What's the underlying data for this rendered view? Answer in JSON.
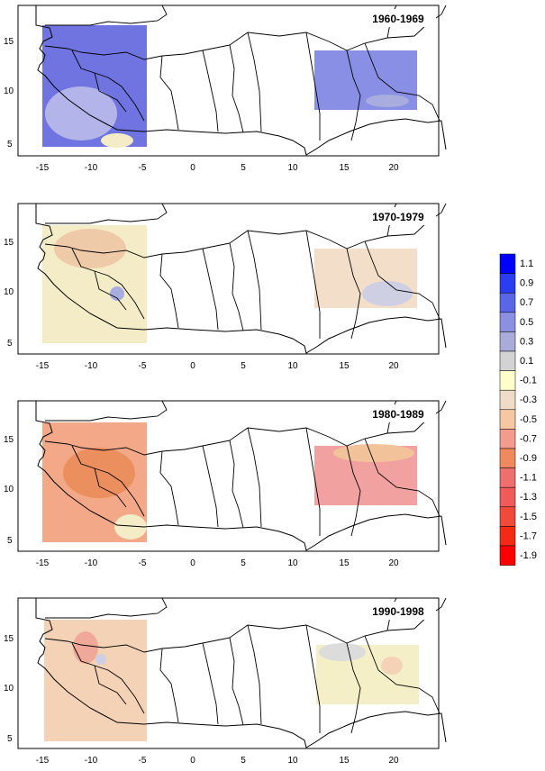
{
  "panels": [
    {
      "label": "1960-1969",
      "west_fill": "#6f74e0",
      "east_fill": "#8a8fe6",
      "west_accent": "#b2b4ea",
      "east_accent": "#a9acdf"
    },
    {
      "label": "1970-1979",
      "west_fill": "#f3ecc7",
      "east_fill": "#f3dfc9",
      "west_accent": "#efcaa9",
      "east_accent": "#cfcfe3"
    },
    {
      "label": "1980-1989",
      "west_fill": "#f3a888",
      "east_fill": "#f2a1a1",
      "west_accent": "#eb8f5f",
      "east_accent": "#f2c39a"
    },
    {
      "label": "1990-1998",
      "west_fill": "#f4d2b5",
      "east_fill": "#f4efc7",
      "west_accent": "#f0a999",
      "east_accent": "#dcdcdc"
    }
  ],
  "x_ticks": [
    "-15",
    "-10",
    "-5",
    "0",
    "5",
    "10",
    "15",
    "20"
  ],
  "y_ticks": [
    "15",
    "10",
    "5"
  ],
  "legend": {
    "labels": [
      "1.1",
      "0.9",
      "0.7",
      "0.5",
      "0.3",
      "0.1",
      "-0.1",
      "-0.3",
      "-0.5",
      "-0.7",
      "-0.9",
      "-1.1",
      "-1.3",
      "-1.5",
      "-1.7",
      "-1.9"
    ],
    "colors": [
      "#0000ff",
      "#2c3cf0",
      "#5a66e6",
      "#8c90e0",
      "#a9acd9",
      "#d3d3d3",
      "#ffffcc",
      "#eedbc8",
      "#f6c7a3",
      "#f49b8e",
      "#f08a5e",
      "#ef6e6e",
      "#f25a5a",
      "#f24a3a",
      "#f52a14",
      "#ff0000"
    ]
  }
}
